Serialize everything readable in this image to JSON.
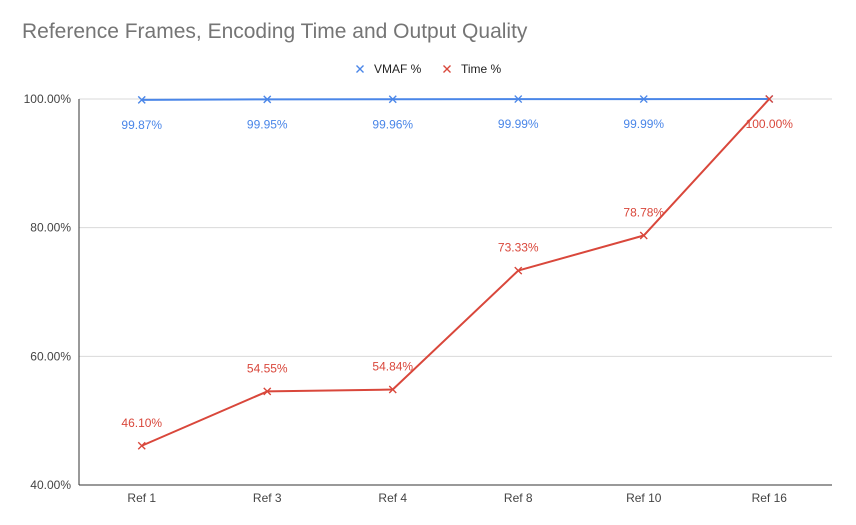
{
  "chart_data": {
    "type": "line",
    "title": "Reference Frames, Encoding Time and Output Quality",
    "categories": [
      "Ref 1",
      "Ref 3",
      "Ref 4",
      "Ref 8",
      "Ref 10",
      "Ref 16"
    ],
    "series": [
      {
        "name": "VMAF %",
        "color": "#4a86e8",
        "values": [
          99.87,
          99.95,
          99.96,
          99.99,
          99.99,
          100.0
        ],
        "labels": [
          "99.87%",
          "99.95%",
          "99.96%",
          "99.99%",
          "99.99%",
          ""
        ]
      },
      {
        "name": "Time %",
        "color": "#d9473b",
        "values": [
          46.1,
          54.55,
          54.84,
          73.33,
          78.78,
          100.0
        ],
        "labels": [
          "46.10%",
          "54.55%",
          "54.84%",
          "73.33%",
          "78.78%",
          "100.00%"
        ]
      }
    ],
    "ylim": [
      40,
      100
    ],
    "yticks": [
      40,
      60,
      80,
      100
    ],
    "ytick_labels": [
      "40.00%",
      "60.00%",
      "80.00%",
      "100.00%"
    ],
    "grid": true,
    "legend_position": "top"
  }
}
